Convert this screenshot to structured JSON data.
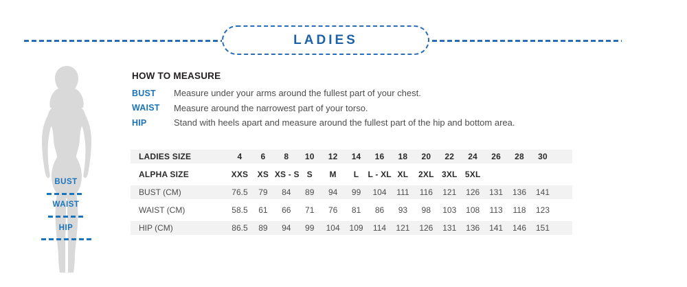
{
  "colors": {
    "accent_blue": "#1b74bb",
    "title_blue": "#1d61a7",
    "dash_blue": "#2a6db4",
    "row_stripe": "#f2f2f2",
    "silhouette_gray": "#d9d9d9",
    "text_dark": "#231f20",
    "text_body": "#4d4d4d"
  },
  "header": {
    "title": "LADIES"
  },
  "figure": {
    "markers": [
      {
        "label": "BUST"
      },
      {
        "label": "WAIST"
      },
      {
        "label": "HIP"
      }
    ]
  },
  "how_to_measure": {
    "title": "HOW TO MEASURE",
    "items": [
      {
        "term": "BUST",
        "description": "Measure under your arms around the fullest part of your chest."
      },
      {
        "term": "WAIST",
        "description": "Measure around the narrowest part of your torso."
      },
      {
        "term": "HIP",
        "description": "Stand with heels apart and measure around the fullest part of the hip and bottom area."
      }
    ]
  },
  "table": {
    "rows": [
      {
        "label": "LADIES SIZE",
        "bold": true,
        "values": [
          "4",
          "6",
          "8",
          "10",
          "12",
          "14",
          "16",
          "18",
          "20",
          "22",
          "24",
          "26",
          "28",
          "30"
        ]
      },
      {
        "label": "ALPHA SIZE",
        "bold": true,
        "values": [
          "XXS",
          "XS",
          "XS - S",
          "S",
          "M",
          "L",
          "L - XL",
          "XL",
          "2XL",
          "3XL",
          "5XL",
          "",
          "",
          ""
        ]
      },
      {
        "label": "BUST (CM)",
        "bold": false,
        "values": [
          "76.5",
          "79",
          "84",
          "89",
          "94",
          "99",
          "104",
          "111",
          "116",
          "121",
          "126",
          "131",
          "136",
          "141"
        ]
      },
      {
        "label": "WAIST (CM)",
        "bold": false,
        "values": [
          "58.5",
          "61",
          "66",
          "71",
          "76",
          "81",
          "86",
          "93",
          "98",
          "103",
          "108",
          "113",
          "118",
          "123"
        ]
      },
      {
        "label": "HIP (CM)",
        "bold": false,
        "values": [
          "86.5",
          "89",
          "94",
          "99",
          "104",
          "109",
          "114",
          "121",
          "126",
          "131",
          "136",
          "141",
          "146",
          "151"
        ]
      }
    ]
  }
}
